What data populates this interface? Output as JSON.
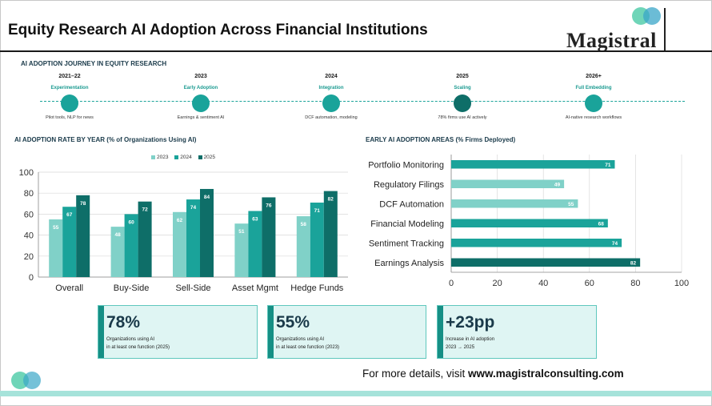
{
  "title": "Equity Research AI Adoption Across Financial Institutions",
  "logo": {
    "text": "Magistral"
  },
  "journey": {
    "label": "AI ADOPTION JOURNEY IN EQUITY RESEARCH",
    "stages": [
      {
        "year": "2021–22",
        "stage": "Experimentation",
        "desc": "Pilot tools, NLP for news",
        "color": "#1aa39a"
      },
      {
        "year": "2023",
        "stage": "Early Adoption",
        "desc": "Earnings & sentiment AI",
        "color": "#1aa39a"
      },
      {
        "year": "2024",
        "stage": "Integration",
        "desc": "DCF automation, modeling",
        "color": "#1aa39a"
      },
      {
        "year": "2025",
        "stage": "Scaling",
        "desc": "78% firms use AI actively",
        "color": "#0e6e68"
      },
      {
        "year": "2026+",
        "stage": "Full Embedding",
        "desc": "AI-native research workflows",
        "color": "#1aa39a"
      }
    ]
  },
  "chart_data": [
    {
      "type": "bar",
      "title": "AI ADOPTION RATE BY YEAR  (% of Organizations Using AI)",
      "categories": [
        "Overall",
        "Buy-Side",
        "Sell-Side",
        "Asset Mgmt",
        "Hedge Funds"
      ],
      "series": [
        {
          "name": "2023",
          "values": [
            55,
            48,
            62,
            51,
            58
          ],
          "color": "#80d1c8"
        },
        {
          "name": "2024",
          "values": [
            67,
            60,
            74,
            63,
            71
          ],
          "color": "#1aa39a"
        },
        {
          "name": "2025",
          "values": [
            78,
            72,
            84,
            76,
            82
          ],
          "color": "#0e6e68"
        }
      ],
      "ylim": [
        0,
        100
      ],
      "yticks": [
        0,
        20,
        40,
        60,
        80,
        100
      ],
      "legend": "top",
      "grid": true
    },
    {
      "type": "bar",
      "orientation": "horizontal",
      "title": "EARLY AI ADOPTION AREAS  (% Firms Deployed)",
      "categories": [
        "Portfolio Monitoring",
        "Regulatory Filings",
        "DCF Automation",
        "Financial Modeling",
        "Sentiment Tracking",
        "Earnings Analysis"
      ],
      "values": [
        71,
        49,
        55,
        68,
        74,
        82
      ],
      "colors": [
        "#1aa39a",
        "#80d1c8",
        "#80d1c8",
        "#1aa39a",
        "#1aa39a",
        "#0e6e68"
      ],
      "xlim": [
        0,
        100
      ],
      "xticks": [
        0,
        20,
        40,
        60,
        80,
        100
      ],
      "grid": true
    }
  ],
  "kpis": [
    {
      "value": "78%",
      "line1": "Organizations using AI",
      "line2": "in at least one function (2025)"
    },
    {
      "value": "55%",
      "line1": "Organizations using AI",
      "line2": "in at least one function (2023)"
    },
    {
      "value": "+23pp",
      "line1": "Increase in AI adoption",
      "line2": "2023 → 2025"
    }
  ],
  "footer": {
    "prefix": "For more details, visit ",
    "link": "www.magistralconsulting.com"
  },
  "colors": {
    "teal_light": "#80d1c8",
    "teal": "#1aa39a",
    "teal_dark": "#0e6e68",
    "bottom_bar": "#a6e3da"
  }
}
